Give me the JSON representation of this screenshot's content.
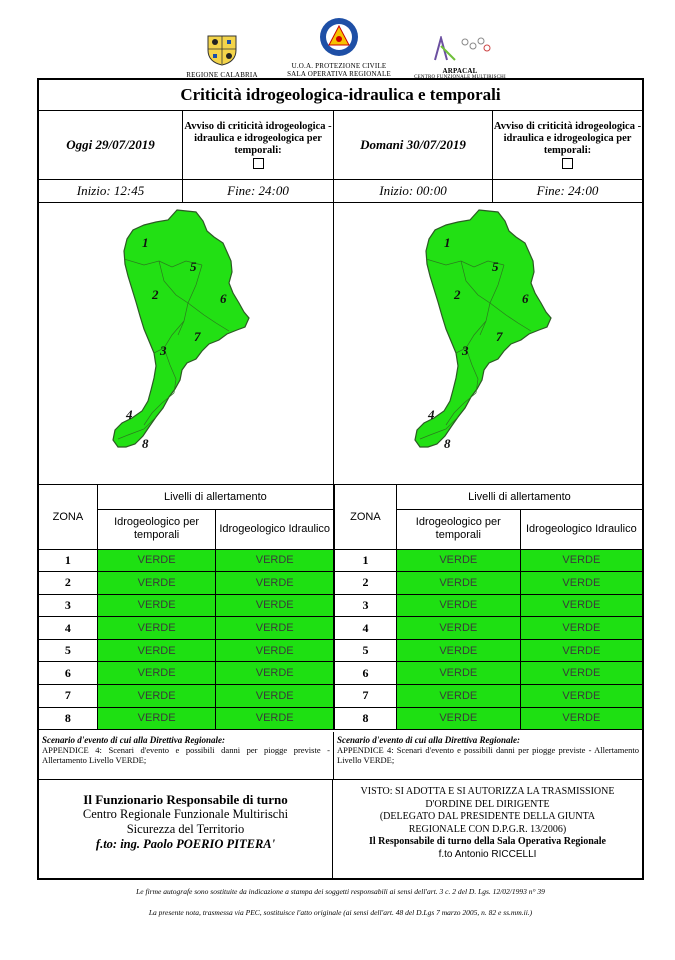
{
  "logos": {
    "calabria": "REGIONE CALABRIA",
    "pc_line1": "U.O.A. PROTEZIONE CIVILE",
    "pc_line2": "SALA OPERATIVA REGIONALE",
    "arpacal": "ARPACAL",
    "arpacal_sub": "CENTRO FUNZIONALE MULTIRISCHI"
  },
  "title": "Criticità idrogeologica-idraulica e temporali",
  "left": {
    "date": "Oggi 29/07/2019",
    "avviso": "Avviso di criticità idrogeologica - idraulica e idrogeologica per temporali:",
    "inizio": "Inizio: 12:45",
    "fine": "Fine: 24:00"
  },
  "right": {
    "date": "Domani 30/07/2019",
    "avviso": "Avviso di criticità idrogeologica - idraulica e idrogeologica per temporali:",
    "inizio": "Inizio: 00:00",
    "fine": "Fine: 24:00"
  },
  "map": {
    "fill_color": "#22e014",
    "zone_labels": [
      "1",
      "2",
      "3",
      "4",
      "5",
      "6",
      "7",
      "8"
    ]
  },
  "table": {
    "zona": "ZONA",
    "livelli": "Livelli di allertamento",
    "col1": "Idrogeologico per temporali",
    "col2": "Idrogeologico Idraulico",
    "rows": [
      {
        "zona": "1",
        "a": "VERDE",
        "b": "VERDE"
      },
      {
        "zona": "2",
        "a": "VERDE",
        "b": "VERDE"
      },
      {
        "zona": "3",
        "a": "VERDE",
        "b": "VERDE"
      },
      {
        "zona": "4",
        "a": "VERDE",
        "b": "VERDE"
      },
      {
        "zona": "5",
        "a": "VERDE",
        "b": "VERDE"
      },
      {
        "zona": "6",
        "a": "VERDE",
        "b": "VERDE"
      },
      {
        "zona": "7",
        "a": "VERDE",
        "b": "VERDE"
      },
      {
        "zona": "8",
        "a": "VERDE",
        "b": "VERDE"
      }
    ],
    "verde_color": "#1ee012"
  },
  "scenario": {
    "heading": "Scenario d'evento di cui alla Direttiva Regionale:",
    "text": "APPENDICE 4: Scenari d'evento e possibili danni per piogge previste - Allertamento Livello VERDE;"
  },
  "footer_left": {
    "line1": "Il Funzionario Responsabile di turno",
    "line2": "Centro Regionale Funzionale Multirischi",
    "line3": "Sicurezza del Territorio",
    "line4": "f.to: ing. Paolo POERIO PITERA'"
  },
  "footer_right": {
    "line1": "VISTO: SI ADOTTA E SI AUTORIZZA LA TRASMISSIONE",
    "line2": "D'ORDINE DEL DIRIGENTE",
    "line3": "(DELEGATO DAL PRESIDENTE DELLA GIUNTA",
    "line4": "REGIONALE CON D.P.G.R. 13/2006)",
    "line5": "Il Responsabile di turno della Sala Operativa Regionale",
    "line6": "f.to Antonio RICCELLI"
  },
  "notes": {
    "line1": "Le firme autografe sono sostituite da indicazione a stampa dei soggetti responsabili ai sensi dell'art. 3 c. 2 del D. Lgs. 12/02/1993 n° 39",
    "line2": "La presente nota, trasmessa via PEC, sostituisce l'atto originale (ai sensi dell'art. 48 del D.Lgs 7 marzo 2005, n. 82 e ss.mm.ii.)"
  }
}
